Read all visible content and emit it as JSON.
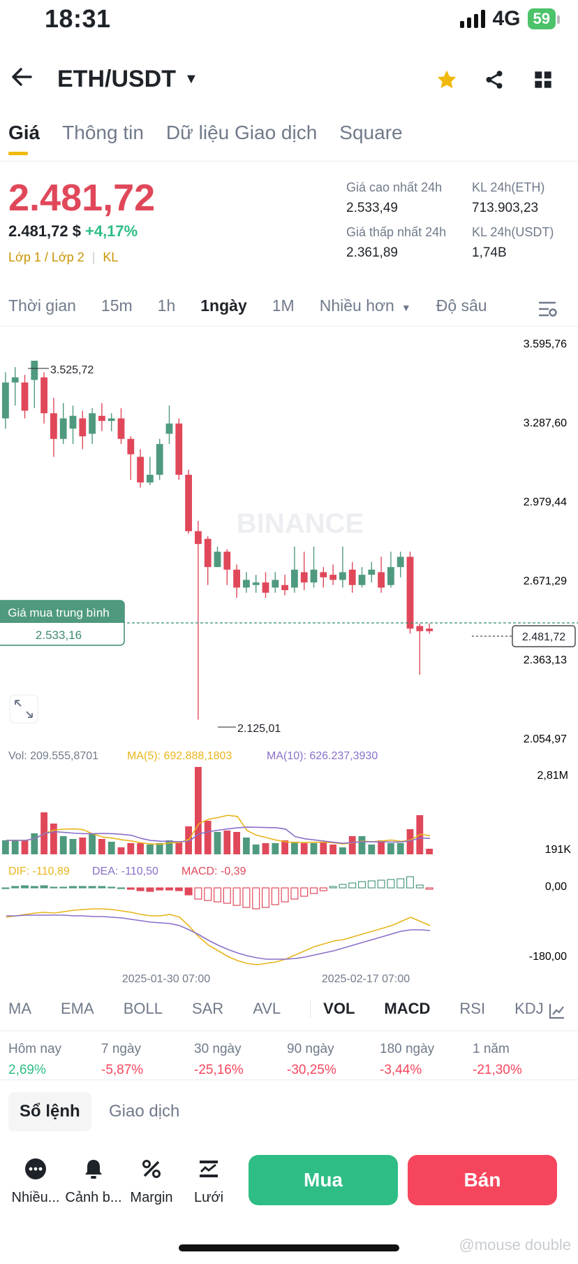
{
  "status": {
    "time": "18:31",
    "network": "4G",
    "battery": "59"
  },
  "header": {
    "pair": "ETH/USDT"
  },
  "tabs": [
    "Giá",
    "Thông tin",
    "Dữ liệu Giao dịch",
    "Square"
  ],
  "price": {
    "last": "2.481,72",
    "usd": "2.481,72 $",
    "change": "+4,17%",
    "tags": "Lớp 1 / Lớp 2",
    "tag2": "KL",
    "high_label": "Giá cao nhất 24h",
    "high": "2.533,49",
    "low_label": "Giá thấp nhất 24h",
    "low": "2.361,89",
    "vol_eth_label": "KL 24h(ETH)",
    "vol_eth": "713.903,23",
    "vol_usdt_label": "KL 24h(USDT)",
    "vol_usdt": "1,74B"
  },
  "timeframes": [
    "Thời gian",
    "15m",
    "1h",
    "1ngày",
    "1M",
    "Nhiều hơn",
    "Độ sâu"
  ],
  "chart": {
    "y_labels": [
      "3.595,76",
      "3.287,60",
      "2.979,44",
      "2.671,29",
      "2.363,13",
      "2.054,97"
    ],
    "high_mark": "3.525,72",
    "low_mark": "2.125,01",
    "current": "2.481,72",
    "avg_label": "Giá mua trung bình",
    "avg_value": "2.533,16",
    "watermark": "BINANCE",
    "vol_info": "Vol: 209.555,8701",
    "ma5": "MA(5): 692.888,1803",
    "ma10": "MA(10): 626.237,3930",
    "vol_max": "2,81M",
    "vol_min": "191K",
    "dif": "DIF: -110,89",
    "dea": "DEA: -110,50",
    "macd": "MACD: -0,39",
    "macd_top": "0,00",
    "macd_bottom": "-180,00",
    "date1": "2025-01-30 07:00",
    "date2": "2025-02-17 07:00"
  },
  "indicators": [
    "MA",
    "EMA",
    "BOLL",
    "SAR",
    "AVL",
    "VOL",
    "MACD",
    "RSI",
    "KDJ"
  ],
  "performance": [
    {
      "label": "Hôm nay",
      "value": "2,69%"
    },
    {
      "label": "7 ngày",
      "value": "-5,87%"
    },
    {
      "label": "30 ngày",
      "value": "-25,16%"
    },
    {
      "label": "90 ngày",
      "value": "-30,25%"
    },
    {
      "label": "180 ngày",
      "value": "-3,44%"
    },
    {
      "label": "1 năm",
      "value": "-21,30%"
    }
  ],
  "bottom_tabs": {
    "orderbook": "Sổ lệnh",
    "trades": "Giao dịch"
  },
  "actions": [
    "Nhiều...",
    "Cảnh b...",
    "Margin",
    "Lưới"
  ],
  "buttons": {
    "buy": "Mua",
    "sell": "Bán"
  },
  "watermark": "@mouse double",
  "colors": {
    "up": "#4f9a7e",
    "down": "#e0485a",
    "accent": "#f0b90b"
  }
}
